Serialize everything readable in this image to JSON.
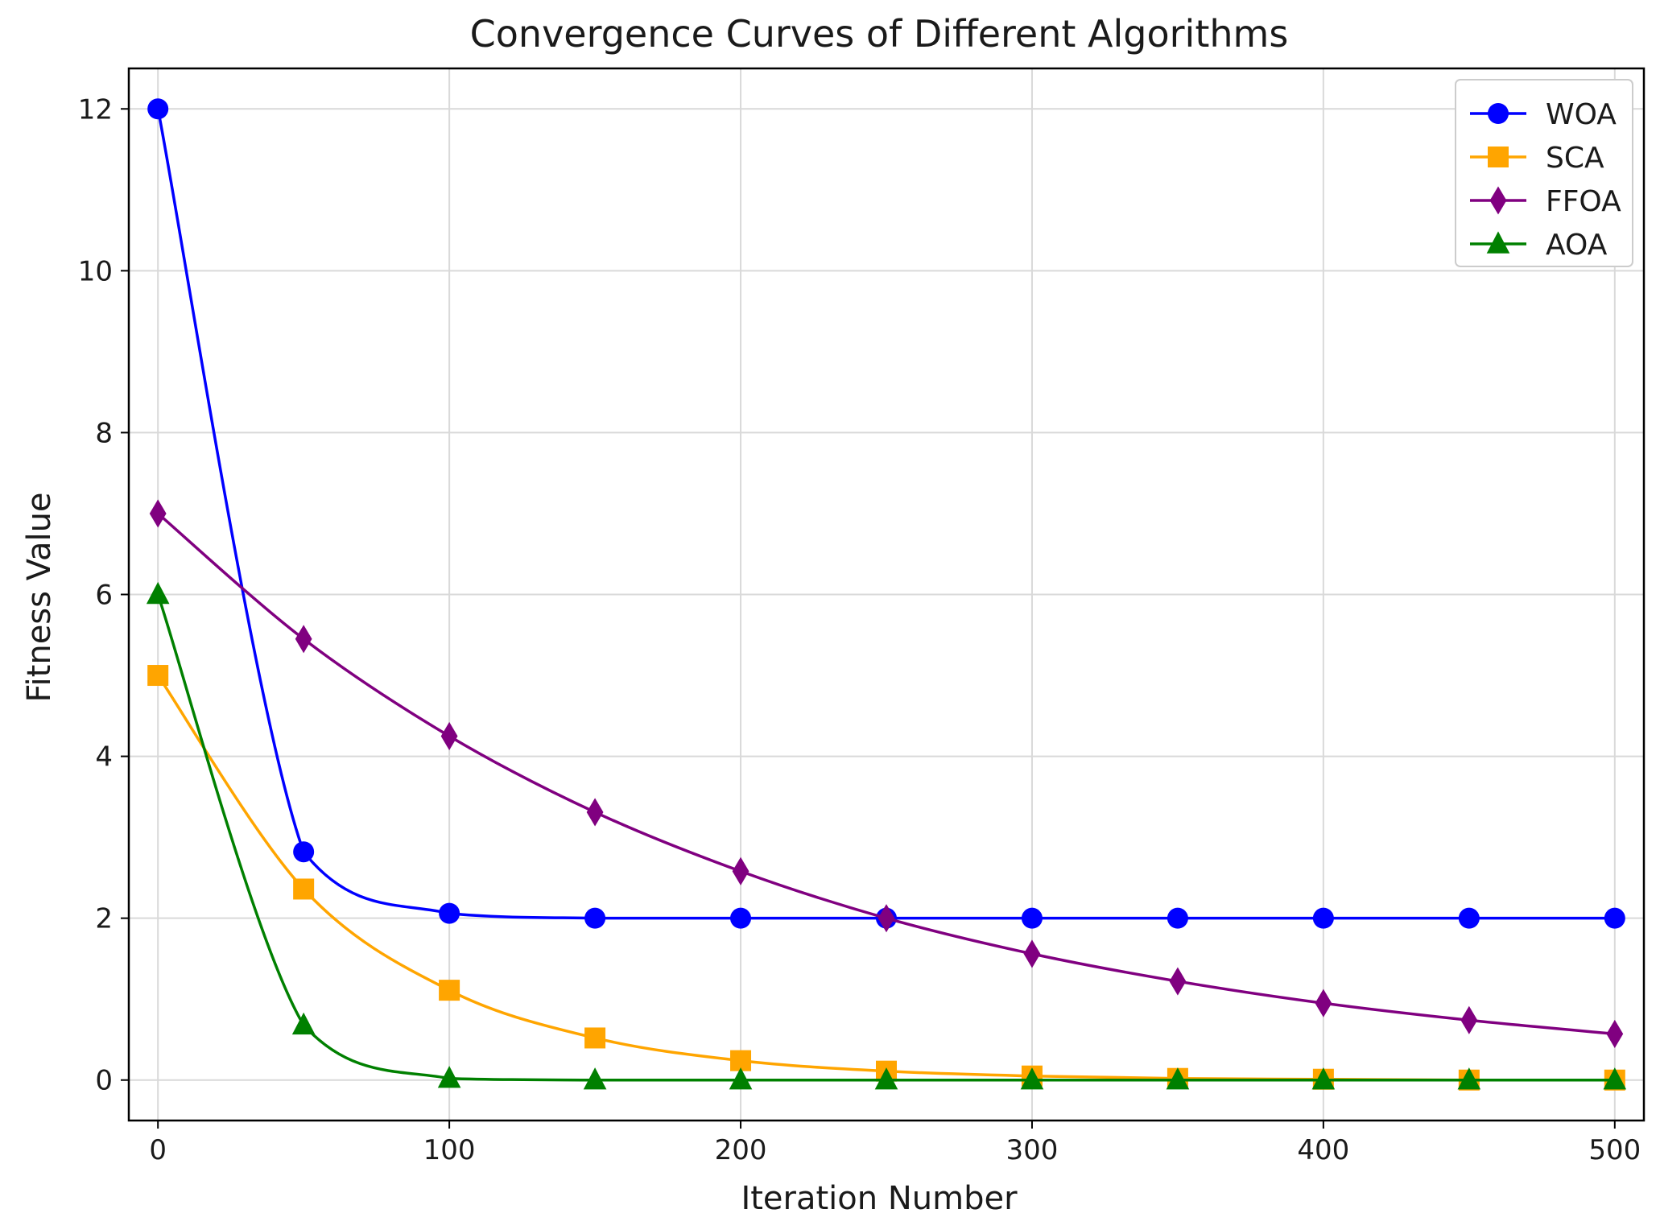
{
  "chart_data": {
    "type": "line",
    "title": "Convergence Curves of Different Algorithms",
    "xlabel": "Iteration Number",
    "ylabel": "Fitness Value",
    "xlim": [
      -10,
      510
    ],
    "ylim": [
      -0.5,
      12.5
    ],
    "xticks": [
      0,
      100,
      200,
      300,
      400,
      500
    ],
    "yticks": [
      0,
      2,
      4,
      6,
      8,
      10,
      12
    ],
    "grid": true,
    "legend_position": "top-right",
    "marker_x": [
      0,
      50,
      100,
      150,
      200,
      250,
      300,
      350,
      400,
      450,
      500
    ],
    "series": [
      {
        "name": "WOA",
        "color": "#0000ff",
        "marker": "circle",
        "values": [
          12,
          2.82,
          2.06,
          2.0,
          2.0,
          2.0,
          2.0,
          2.0,
          2.0,
          2.0,
          2.0
        ]
      },
      {
        "name": "SCA",
        "color": "#ffa500",
        "marker": "square",
        "values": [
          5.0,
          2.36,
          1.11,
          0.52,
          0.24,
          0.11,
          0.05,
          0.02,
          0.01,
          0.0,
          0.0
        ]
      },
      {
        "name": "FFOA",
        "color": "#800080",
        "marker": "diamond",
        "values": [
          7.0,
          5.45,
          4.25,
          3.31,
          2.58,
          2.0,
          1.56,
          1.22,
          0.95,
          0.74,
          0.57
        ]
      },
      {
        "name": "AOA",
        "color": "#008000",
        "marker": "triangle",
        "values": [
          6.0,
          0.68,
          0.02,
          0.0,
          0.0,
          0.0,
          0.0,
          0.0,
          0.0,
          0.0,
          0.0
        ]
      }
    ]
  }
}
